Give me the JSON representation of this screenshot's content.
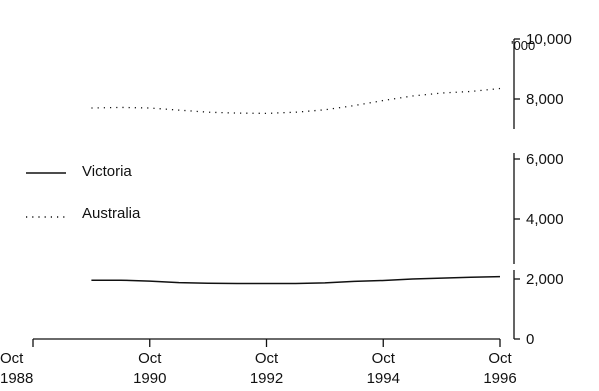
{
  "chart_data": {
    "type": "line",
    "title": "",
    "xlabel": "",
    "ylabel": "'000",
    "x_ticks": [
      {
        "month": "Oct",
        "year": "1988",
        "t": 1988.75
      },
      {
        "month": "Oct",
        "year": "1990",
        "t": 1990.75
      },
      {
        "month": "Oct",
        "year": "1992",
        "t": 1992.75
      },
      {
        "month": "Oct",
        "year": "1994",
        "t": 1994.75
      },
      {
        "month": "Oct",
        "year": "1996",
        "t": 1996.75
      }
    ],
    "xlim": [
      1988.75,
      1996.75
    ],
    "ylim": [
      0,
      10000
    ],
    "y_ticks": [
      "0",
      "2,000",
      "4,000",
      "6,000",
      "8,000",
      "10,000"
    ],
    "y_tick_values": [
      0,
      2000,
      4000,
      6000,
      8000,
      10000
    ],
    "axis_breaks": [
      7000,
      6200,
      2500
    ],
    "legend": {
      "position": "left"
    },
    "series": [
      {
        "name": "Victoria",
        "style": "solid",
        "x": [
          1989.75,
          1990.25,
          1990.75,
          1991.25,
          1991.75,
          1992.25,
          1992.75,
          1993.25,
          1993.75,
          1994.25,
          1994.75,
          1995.25,
          1995.75,
          1996.25,
          1996.75
        ],
        "values": [
          1960,
          1960,
          1930,
          1880,
          1860,
          1850,
          1850,
          1850,
          1870,
          1920,
          1950,
          2000,
          2030,
          2060,
          2080
        ]
      },
      {
        "name": "Australia",
        "style": "dotted",
        "x": [
          1989.75,
          1990.25,
          1990.75,
          1991.25,
          1991.75,
          1992.25,
          1992.75,
          1993.25,
          1993.75,
          1994.25,
          1994.75,
          1995.25,
          1995.75,
          1996.25,
          1996.75
        ],
        "values": [
          7700,
          7720,
          7700,
          7630,
          7560,
          7530,
          7520,
          7560,
          7640,
          7780,
          7950,
          8100,
          8200,
          8250,
          8350
        ]
      }
    ]
  }
}
